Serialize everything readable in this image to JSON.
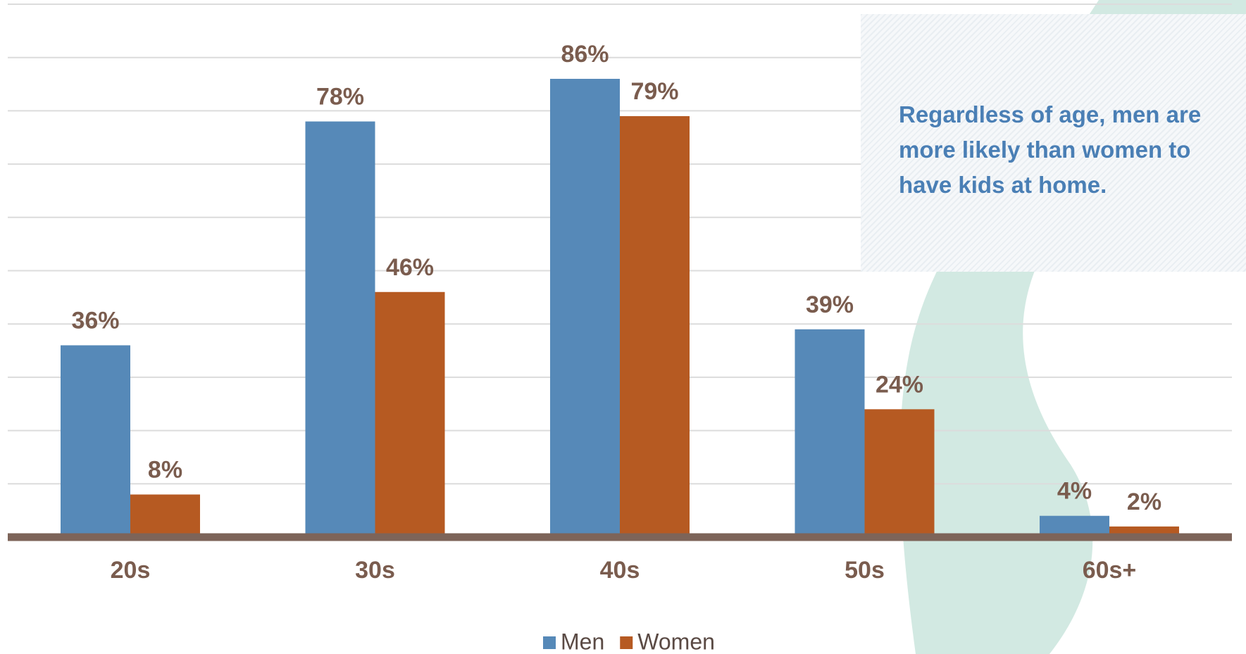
{
  "chart_data": {
    "type": "bar",
    "categories": [
      "20s",
      "30s",
      "40s",
      "50s",
      "60s+"
    ],
    "series": [
      {
        "name": "Men",
        "color": "#5689b8",
        "values": [
          36,
          78,
          86,
          39,
          4
        ],
        "value_labels": [
          "36%",
          "78%",
          "86%",
          "39%",
          "4%"
        ]
      },
      {
        "name": "Women",
        "color": "#b65a22",
        "values": [
          8,
          46,
          79,
          24,
          2
        ],
        "value_labels": [
          "8%",
          "46%",
          "79%",
          "24%",
          "2%"
        ]
      }
    ],
    "ylim": [
      0,
      100
    ],
    "yticks": [
      0,
      10,
      20,
      30,
      40,
      50,
      60,
      70,
      80,
      90,
      100
    ],
    "grid": true,
    "annotation": "Regardless of age, men are more likely than women to have kids at home."
  }
}
